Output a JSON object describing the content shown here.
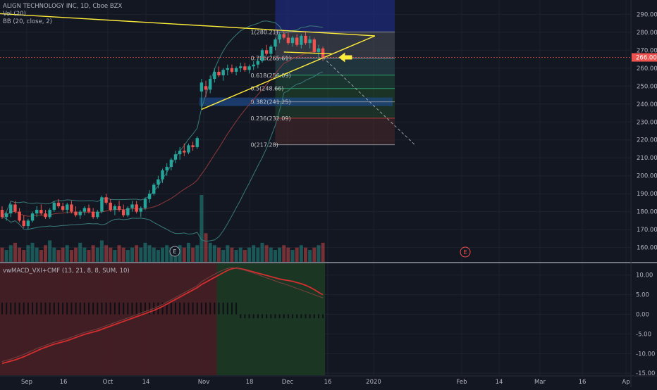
{
  "legend": {
    "main_title": "ALIGN TECHNOLOGY INC, 1D, Cboe BZX",
    "volume": "Vol (20)",
    "bollinger": "BB (20, close, 2)",
    "indicator": "vwMACD_VXI+CMF (13, 21, 8, 8, SUM, 10)"
  },
  "last_price_label": "266.00",
  "earnings_marker_label": "E",
  "colors": {
    "background": "#131722",
    "grid": "#1e222d",
    "axis_text": "#b2b5be",
    "candle_up": "#26a69a",
    "candle_down": "#ef5350",
    "trendline": "#ffeb3b",
    "bollinger_band": "#3a7a7a",
    "bollinger_basis": "#8b3a3a",
    "price_line": "#ef5350",
    "fib_box": "#5d6673",
    "macd_line": "#d32f2f",
    "signal_line": "#7b3f3f",
    "arrow": "#ffeb3b"
  },
  "chart_data": [
    {
      "type": "candlestick",
      "title": "ALIGN TECHNOLOGY INC, 1D, Cboe BZX",
      "ylim": [
        152,
        298
      ],
      "y_ticks": [
        "290.00",
        "280.00",
        "270.00",
        "260.00",
        "250.00",
        "240.00",
        "230.00",
        "220.00",
        "210.00",
        "200.00",
        "190.00",
        "180.00",
        "170.00",
        "160.00"
      ],
      "x_ticks": [
        "Sep",
        "16",
        "Oct",
        "14",
        "Nov",
        "18",
        "Dec",
        "16",
        "2020",
        "Feb",
        "14",
        "Mar",
        "16",
        "Ap"
      ],
      "grid": true,
      "candles_ohlc": [
        [
          181,
          183,
          176,
          177
        ],
        [
          177,
          180,
          175,
          179
        ],
        [
          179,
          185,
          177,
          184
        ],
        [
          184,
          186,
          179,
          180
        ],
        [
          180,
          182,
          174,
          175
        ],
        [
          175,
          178,
          171,
          172
        ],
        [
          172,
          176,
          170,
          175
        ],
        [
          175,
          180,
          174,
          179
        ],
        [
          179,
          183,
          177,
          181
        ],
        [
          181,
          184,
          178,
          179
        ],
        [
          179,
          181,
          176,
          177
        ],
        [
          177,
          182,
          176,
          181
        ],
        [
          181,
          186,
          180,
          185
        ],
        [
          185,
          187,
          182,
          183
        ],
        [
          183,
          185,
          180,
          181
        ],
        [
          181,
          185,
          179,
          184
        ],
        [
          184,
          186,
          179,
          180
        ],
        [
          180,
          183,
          177,
          178
        ],
        [
          178,
          181,
          176,
          180
        ],
        [
          180,
          183,
          178,
          182
        ],
        [
          182,
          184,
          179,
          180
        ],
        [
          180,
          182,
          176,
          177
        ],
        [
          177,
          181,
          176,
          180
        ],
        [
          180,
          189,
          179,
          188
        ],
        [
          188,
          190,
          184,
          185
        ],
        [
          185,
          187,
          180,
          181
        ],
        [
          181,
          184,
          178,
          183
        ],
        [
          183,
          186,
          180,
          181
        ],
        [
          181,
          184,
          177,
          178
        ],
        [
          178,
          183,
          177,
          182
        ],
        [
          182,
          186,
          180,
          184
        ],
        [
          184,
          186,
          179,
          180
        ],
        [
          180,
          183,
          177,
          182
        ],
        [
          182,
          188,
          181,
          187
        ],
        [
          187,
          192,
          185,
          190
        ],
        [
          190,
          196,
          189,
          195
        ],
        [
          195,
          200,
          193,
          198
        ],
        [
          198,
          204,
          196,
          203
        ],
        [
          203,
          207,
          200,
          205
        ],
        [
          205,
          210,
          203,
          209
        ],
        [
          209,
          214,
          207,
          212
        ],
        [
          212,
          216,
          209,
          214
        ],
        [
          214,
          218,
          211,
          213
        ],
        [
          213,
          218,
          212,
          217
        ],
        [
          217,
          219,
          214,
          216
        ],
        [
          216,
          222,
          215,
          221
        ],
        [
          247,
          254,
          237,
          252
        ],
        [
          250,
          253,
          244,
          248
        ],
        [
          248,
          256,
          246,
          254
        ],
        [
          254,
          260,
          252,
          258
        ],
        [
          258,
          261,
          255,
          256
        ],
        [
          256,
          260,
          253,
          259
        ],
        [
          259,
          262,
          256,
          260
        ],
        [
          260,
          262,
          257,
          258
        ],
        [
          258,
          261,
          256,
          260
        ],
        [
          260,
          263,
          258,
          261
        ],
        [
          261,
          263,
          258,
          259
        ],
        [
          259,
          262,
          257,
          261
        ],
        [
          261,
          264,
          259,
          262
        ],
        [
          262,
          266,
          260,
          264
        ],
        [
          264,
          271,
          263,
          270
        ],
        [
          270,
          273,
          267,
          268
        ],
        [
          268,
          273,
          266,
          272
        ],
        [
          272,
          277,
          270,
          276
        ],
        [
          276,
          280,
          274,
          279
        ],
        [
          279,
          281,
          276,
          277
        ],
        [
          277,
          280,
          273,
          274
        ],
        [
          274,
          278,
          272,
          277
        ],
        [
          277,
          279,
          272,
          273
        ],
        [
          273,
          279,
          271,
          278
        ],
        [
          278,
          280,
          273,
          274
        ],
        [
          274,
          278,
          271,
          276
        ],
        [
          276,
          277,
          268,
          269
        ],
        [
          269,
          273,
          265,
          271
        ],
        [
          271,
          272,
          264,
          266
        ]
      ],
      "bollinger": {
        "upper_range": [
          197,
          280
        ],
        "lower_range": [
          165,
          264
        ],
        "basis_range": [
          176,
          272
        ]
      },
      "fibonacci_retracement": {
        "levels": [
          {
            "ratio": "1",
            "price": 280.21,
            "label": "1(280.21)"
          },
          {
            "ratio": "0.786",
            "price": 265.61,
            "label": "0.786(265.61)"
          },
          {
            "ratio": "0.618",
            "price": 256.09,
            "label": "0.618(256.09)"
          },
          {
            "ratio": "0.5",
            "price": 248.66,
            "label": "0.5(248.66)"
          },
          {
            "ratio": "0.382",
            "price": 241.25,
            "label": "0.382(241.25)"
          },
          {
            "ratio": "0.236",
            "price": 232.09,
            "label": "0.236(232.09)"
          },
          {
            "ratio": "0",
            "price": 217.28,
            "label": "0(217.28)"
          }
        ]
      },
      "trendlines": [
        {
          "name": "upper-trendline",
          "from": {
            "bar": -5,
            "price": 291
          },
          "to": {
            "bar": 86,
            "price": 278
          }
        },
        {
          "name": "lower-trendline",
          "from": {
            "bar": 46,
            "price": 237
          },
          "to": {
            "bar": 86,
            "price": 278
          }
        },
        {
          "name": "flag-base",
          "from": {
            "bar": 65,
            "price": 269
          },
          "to": {
            "bar": 76,
            "price": 268
          }
        }
      ],
      "projection": {
        "from": {
          "bar": 74,
          "price": 266
        },
        "to": {
          "bar": 95,
          "price": 217
        }
      },
      "last_price": 266.0
    },
    {
      "type": "bar",
      "title": "Vol (20)",
      "values": [
        6,
        5,
        7,
        8,
        6,
        5,
        7,
        8,
        6,
        5,
        7,
        9,
        6,
        5,
        6,
        7,
        5,
        6,
        8,
        6,
        5,
        7,
        6,
        9,
        7,
        6,
        5,
        7,
        6,
        5,
        6,
        7,
        6,
        8,
        7,
        6,
        5,
        6,
        7,
        6,
        5,
        7,
        6,
        8,
        6,
        7,
        28,
        12,
        8,
        7,
        6,
        5,
        7,
        6,
        5,
        6,
        5,
        6,
        7,
        6,
        8,
        7,
        6,
        5,
        6,
        7,
        6,
        5,
        6,
        7,
        6,
        5,
        6,
        7,
        8
      ]
    },
    {
      "type": "line",
      "title": "vwMACD_VXI+CMF (13, 21, 8, 8, SUM, 10)",
      "ylim": [
        -15.5,
        13
      ],
      "y_ticks": [
        "10.00",
        "5.00",
        "0.00",
        "-5.00",
        "-10.00",
        "-15.00"
      ],
      "series": [
        {
          "values": [
            -12.5,
            -12.2,
            -11.9,
            -11.6,
            -11.2,
            -10.8,
            -10.3,
            -9.8,
            -9.3,
            -8.8,
            -8.4,
            -8.0,
            -7.6,
            -7.3,
            -7.0,
            -6.7,
            -6.3,
            -5.9,
            -5.5,
            -5.1,
            -4.8,
            -4.5,
            -4.2,
            -3.8,
            -3.4,
            -3.0,
            -2.6,
            -2.2,
            -1.8,
            -1.4,
            -1.0,
            -0.6,
            -0.2,
            0.2,
            0.6,
            1.0,
            1.5,
            2.0,
            2.6,
            3.2,
            3.8,
            4.4,
            5.0,
            5.6,
            6.2,
            6.8,
            7.6,
            8.2,
            8.8,
            9.4,
            10.0,
            10.6,
            11.2,
            11.6,
            11.8,
            11.6,
            11.4,
            11.1,
            10.8,
            10.5,
            10.2,
            9.9,
            9.6,
            9.3,
            9.0,
            8.8,
            8.6,
            8.4,
            8.1,
            7.8,
            7.4,
            6.9,
            6.3,
            5.6,
            5.0
          ]
        },
        {
          "values": [
            -12.0,
            -11.7,
            -11.4,
            -11.0,
            -10.6,
            -10.2,
            -9.7,
            -9.2,
            -8.7,
            -8.3,
            -7.9,
            -7.5,
            -7.1,
            -6.8,
            -6.5,
            -6.2,
            -5.8,
            -5.4,
            -5.0,
            -4.6,
            -4.3,
            -4.0,
            -3.7,
            -3.3,
            -2.9,
            -2.5,
            -2.1,
            -1.7,
            -1.3,
            -0.9,
            -0.5,
            -0.1,
            0.3,
            0.7,
            1.1,
            1.5,
            2.0,
            2.5,
            3.1,
            3.7,
            4.3,
            4.9,
            5.5,
            6.1,
            6.7,
            7.3,
            8.3,
            9.0,
            9.6,
            10.2,
            10.8,
            11.3,
            11.7,
            11.9,
            11.7,
            11.5,
            11.2,
            10.9,
            10.5,
            10.1,
            9.7,
            9.3,
            8.9,
            8.5,
            8.1,
            7.8,
            7.4,
            7.0,
            6.6,
            6.2,
            5.8,
            5.4,
            5.0,
            4.6,
            4.2
          ]
        }
      ],
      "histogram_values": [
        3,
        3,
        3,
        3,
        3,
        3,
        3,
        3,
        3,
        3,
        3,
        3,
        3,
        3,
        3,
        3,
        3,
        3,
        3,
        3,
        3,
        3,
        3,
        3,
        3,
        3,
        3,
        3,
        3,
        3,
        3,
        3,
        3,
        3,
        3,
        3,
        3,
        3,
        3,
        3,
        3,
        3,
        3,
        3,
        3,
        3,
        3,
        3,
        3,
        3,
        3,
        3,
        3,
        3,
        3,
        -1,
        -1,
        -1,
        -1,
        -1,
        -1,
        -1,
        -1,
        -1,
        -1,
        -1,
        -1,
        -1,
        -1,
        -1,
        -1,
        -1,
        -1,
        -1,
        -1
      ]
    }
  ]
}
